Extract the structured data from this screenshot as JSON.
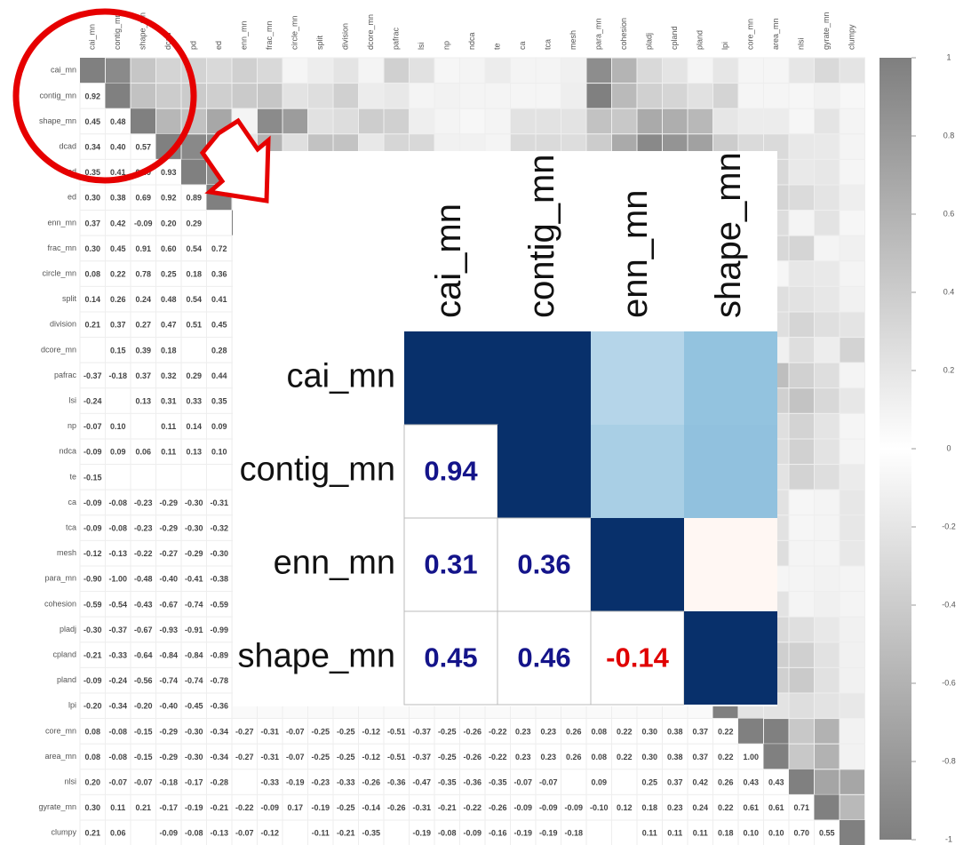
{
  "chart_data": {
    "type": "heatmap",
    "labels": [
      "cai_mn",
      "contig_mn",
      "shape_mn",
      "dcad",
      "pd",
      "ed",
      "enn_mn",
      "frac_mn",
      "circle_mn",
      "split",
      "division",
      "dcore_mn",
      "pafrac",
      "lsi",
      "np",
      "ndca",
      "te",
      "ca",
      "tca",
      "mesh",
      "para_mn",
      "cohesion",
      "pladj",
      "cpland",
      "pland",
      "lpi",
      "core_mn",
      "area_mn",
      "nlsi",
      "gyrate_mn",
      "clumpy"
    ],
    "value_labels": [
      [],
      [
        "0.92"
      ],
      [
        "0.45",
        "0.48"
      ],
      [
        "0.34",
        "0.40",
        "0.57"
      ],
      [
        "0.35",
        "0.41",
        "0.49",
        "0.93"
      ],
      [
        "0.30",
        "0.38",
        "0.69",
        "0.92",
        "0.89"
      ],
      [
        "0.37",
        "0.42",
        "-0.09",
        "0.20",
        "0.29",
        null
      ],
      [
        "0.30",
        "0.45",
        "0.91",
        "0.60",
        "0.54",
        "0.72"
      ],
      [
        "0.08",
        "0.22",
        "0.78",
        "0.25",
        "0.18",
        "0.36"
      ],
      [
        "0.14",
        "0.26",
        "0.24",
        "0.48",
        "0.54",
        "0.41"
      ],
      [
        "0.21",
        "0.37",
        "0.27",
        "0.47",
        "0.51",
        "0.45"
      ],
      [
        null,
        "0.15",
        "0.39",
        "0.18",
        null,
        "0.28"
      ],
      [
        "-0.37",
        "-0.18",
        "0.37",
        "0.32",
        "0.29",
        "0.44"
      ],
      [
        "-0.24",
        null,
        "0.13",
        "0.31",
        "0.33",
        "0.35"
      ],
      [
        "-0.07",
        "0.10",
        null,
        "0.11",
        "0.14",
        "0.09"
      ],
      [
        "-0.09",
        "0.09",
        "0.06",
        "0.11",
        "0.13",
        "0.10"
      ],
      [
        "-0.15",
        null,
        null,
        null,
        null,
        null
      ],
      [
        "-0.09",
        "-0.08",
        "-0.23",
        "-0.29",
        "-0.30",
        "-0.31"
      ],
      [
        "-0.09",
        "-0.08",
        "-0.23",
        "-0.29",
        "-0.30",
        "-0.32"
      ],
      [
        "-0.12",
        "-0.13",
        "-0.22",
        "-0.27",
        "-0.29",
        "-0.30"
      ],
      [
        "-0.90",
        "-1.00",
        "-0.48",
        "-0.40",
        "-0.41",
        "-0.38"
      ],
      [
        "-0.59",
        "-0.54",
        "-0.43",
        "-0.67",
        "-0.74",
        "-0.59"
      ],
      [
        "-0.30",
        "-0.37",
        "-0.67",
        "-0.93",
        "-0.91",
        "-0.99"
      ],
      [
        "-0.21",
        "-0.33",
        "-0.64",
        "-0.84",
        "-0.84",
        "-0.89"
      ],
      [
        "-0.09",
        "-0.24",
        "-0.56",
        "-0.74",
        "-0.74",
        "-0.78"
      ],
      [
        "-0.20",
        "-0.34",
        "-0.20",
        "-0.40",
        "-0.45",
        "-0.36"
      ],
      [
        "0.08",
        "-0.08",
        "-0.15",
        "-0.29",
        "-0.30",
        "-0.34",
        "-0.27",
        "-0.31",
        "-0.07",
        "-0.25",
        "-0.25",
        "-0.12",
        "-0.51",
        "-0.37",
        "-0.25",
        "-0.26",
        "-0.22",
        "0.23",
        "0.23",
        "0.26",
        "0.08",
        "0.22",
        "0.30",
        "0.38",
        "0.37",
        "0.22"
      ],
      [
        "0.08",
        "-0.08",
        "-0.15",
        "-0.29",
        "-0.30",
        "-0.34",
        "-0.27",
        "-0.31",
        "-0.07",
        "-0.25",
        "-0.25",
        "-0.12",
        "-0.51",
        "-0.37",
        "-0.25",
        "-0.26",
        "-0.22",
        "0.23",
        "0.23",
        "0.26",
        "0.08",
        "0.22",
        "0.30",
        "0.38",
        "0.37",
        "0.22",
        "1.00"
      ],
      [
        "0.20",
        "-0.07",
        "-0.07",
        "-0.18",
        "-0.17",
        "-0.28",
        null,
        "-0.33",
        "-0.19",
        "-0.23",
        "-0.33",
        "-0.26",
        "-0.36",
        "-0.47",
        "-0.35",
        "-0.36",
        "-0.35",
        "-0.07",
        "-0.07",
        null,
        "0.09",
        null,
        "0.25",
        "0.37",
        "0.42",
        "0.26",
        "0.43",
        "0.43"
      ],
      [
        "0.30",
        "0.11",
        "0.21",
        "-0.17",
        "-0.19",
        "-0.21",
        "-0.22",
        "-0.09",
        "0.17",
        "-0.19",
        "-0.25",
        "-0.14",
        "-0.26",
        "-0.31",
        "-0.21",
        "-0.22",
        "-0.26",
        "-0.09",
        "-0.09",
        "-0.09",
        "-0.10",
        "0.12",
        "0.18",
        "0.23",
        "0.24",
        "0.22",
        "0.61",
        "0.61",
        "0.71"
      ],
      [
        "0.21",
        "0.06",
        null,
        "-0.09",
        "-0.08",
        "-0.13",
        "-0.07",
        "-0.12",
        null,
        "-0.11",
        "-0.21",
        "-0.35",
        null,
        "-0.19",
        "-0.08",
        "-0.09",
        "-0.16",
        "-0.19",
        "-0.19",
        "-0.18",
        null,
        null,
        "0.11",
        "0.11",
        "0.11",
        "0.18",
        "0.10",
        "0.10",
        "0.70",
        "0.55"
      ]
    ],
    "colorbar_ticks": [
      1,
      0.8,
      0.6,
      0.4,
      0.2,
      0,
      -0.2,
      -0.4,
      -0.6,
      -0.8,
      -1
    ],
    "inset": {
      "labels": [
        "cai_mn",
        "contig_mn",
        "enn_mn",
        "shape_mn"
      ],
      "value_labels": [
        [],
        [
          "0.94"
        ],
        [
          "0.31",
          "0.36"
        ],
        [
          "0.45",
          "0.46",
          "-0.14"
        ]
      ]
    }
  }
}
